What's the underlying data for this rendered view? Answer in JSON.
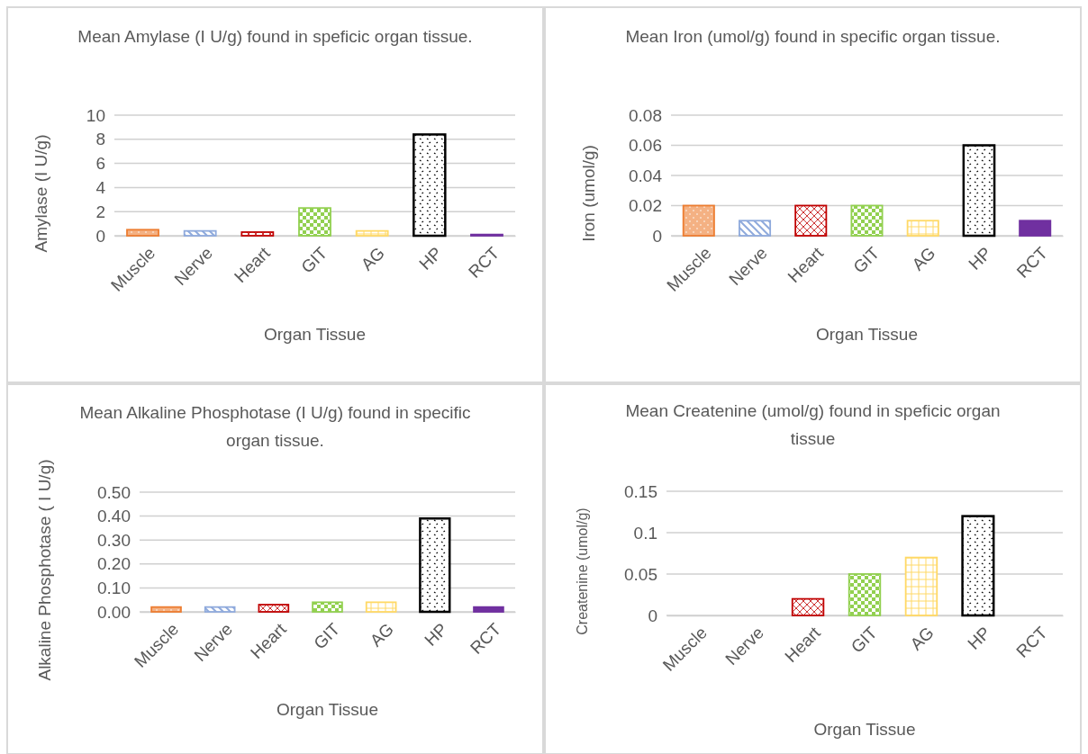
{
  "chart_data": [
    {
      "type": "bar",
      "title": "Mean Amylase (I U/g) found in speficic organ tissue.",
      "xlabel": "Organ Tissue",
      "ylabel": "Amylase (I U/g)",
      "categories": [
        "Muscle",
        "Nerve",
        "Heart",
        "GIT",
        "AG",
        "HP",
        "RCT"
      ],
      "values": [
        0.5,
        0.4,
        0.3,
        2.3,
        0.4,
        8.4,
        0.1
      ],
      "colors": [
        "#ed7d31",
        "#8faadc",
        "#c00000",
        "#92d050",
        "#ffd966",
        "#000000",
        "#7030a0"
      ],
      "ylim": [
        0,
        10
      ],
      "yticks": [
        0,
        2,
        4,
        6,
        8,
        10
      ],
      "grid": "y"
    },
    {
      "type": "bar",
      "title": "Mean Iron (umol/g) found in specific organ tissue.",
      "xlabel": "Organ Tissue",
      "ylabel": "Iron (umol/g)",
      "categories": [
        "Muscle",
        "Nerve",
        "Heart",
        "GIT",
        "AG",
        "HP",
        "RCT"
      ],
      "values": [
        0.02,
        0.01,
        0.02,
        0.02,
        0.01,
        0.06,
        0.01
      ],
      "colors": [
        "#ed7d31",
        "#8faadc",
        "#c00000",
        "#92d050",
        "#ffd966",
        "#000000",
        "#7030a0"
      ],
      "ylim": [
        0,
        0.08
      ],
      "yticks": [
        0,
        0.02,
        0.04,
        0.06,
        0.08
      ],
      "grid": "y"
    },
    {
      "type": "bar",
      "title": "Mean Alkaline Phosphotase (I U/g) found in specific organ tissue.",
      "xlabel": "Organ Tissue",
      "ylabel": "Alkaline Phosphotase ( I U/g)",
      "categories": [
        "Muscle",
        "Nerve",
        "Heart",
        "GIT",
        "AG",
        "HP",
        "RCT"
      ],
      "values": [
        0.02,
        0.02,
        0.03,
        0.04,
        0.04,
        0.39,
        0.02
      ],
      "colors": [
        "#ed7d31",
        "#8faadc",
        "#c00000",
        "#92d050",
        "#ffd966",
        "#000000",
        "#7030a0"
      ],
      "ylim": [
        0,
        0.5
      ],
      "yticks": [
        {
          "value": 0,
          "label": "0.00"
        },
        {
          "value": 0.1,
          "label": "0.10"
        },
        {
          "value": 0.2,
          "label": "0.20"
        },
        {
          "value": 0.3,
          "label": "0.30"
        },
        {
          "value": 0.4,
          "label": "0.40"
        },
        {
          "value": 0.5,
          "label": "0.50"
        }
      ],
      "grid": "y"
    },
    {
      "type": "bar",
      "title": "Mean Createnine (umol/g) found in speficic organ tissue",
      "xlabel": "Organ Tissue",
      "ylabel": "Createnine (umol/g)",
      "categories": [
        "Muscle",
        "Nerve",
        "Heart",
        "GIT",
        "AG",
        "HP",
        "RCT"
      ],
      "values": [
        0,
        0,
        0.02,
        0.05,
        0.07,
        0.12,
        0
      ],
      "colors": [
        "#ed7d31",
        "#8faadc",
        "#c00000",
        "#92d050",
        "#ffd966",
        "#000000",
        "#7030a0"
      ],
      "ylim": [
        0,
        0.15
      ],
      "yticks": [
        0,
        0.05,
        0.1,
        0.15
      ],
      "grid": "y"
    }
  ]
}
